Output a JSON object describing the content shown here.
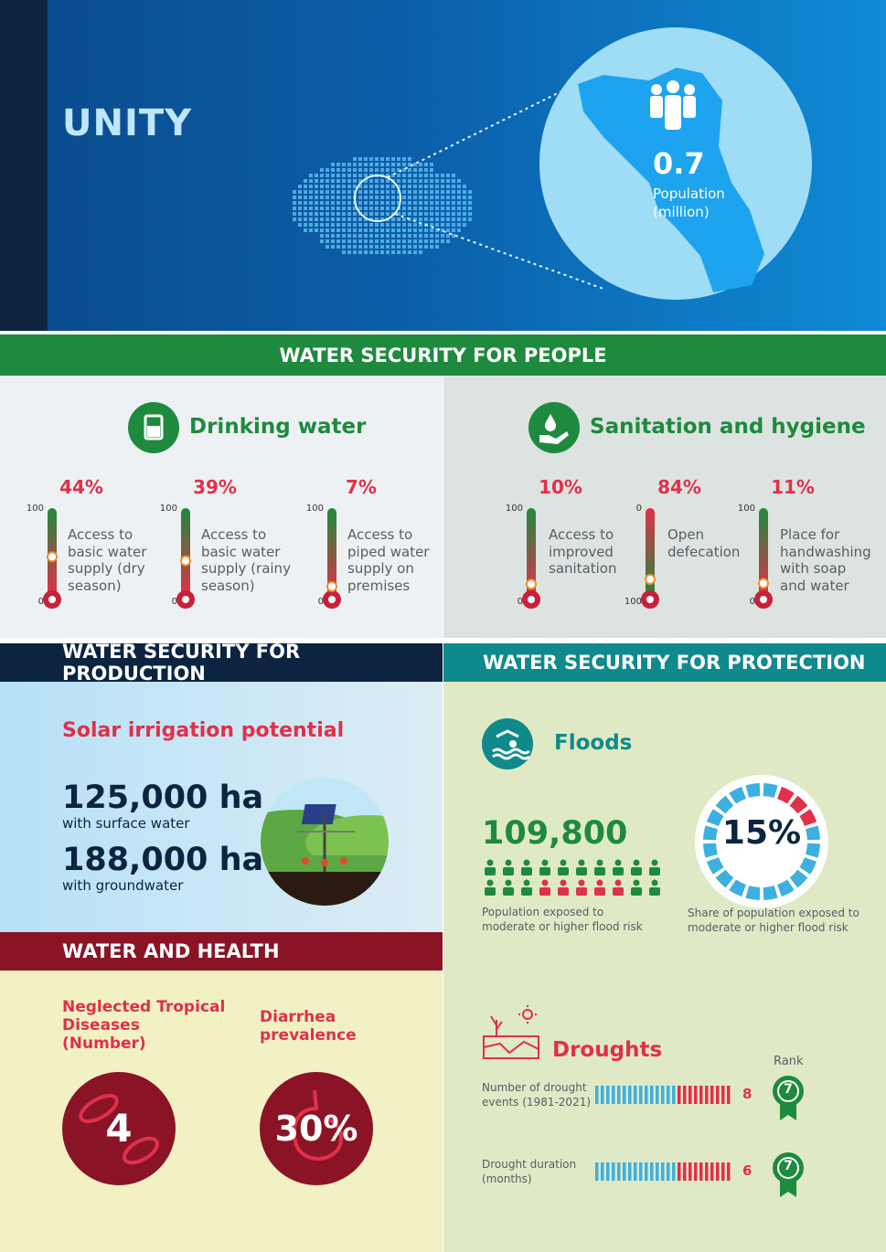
{
  "hero": {
    "title": "UNITY",
    "population_value": "0.7",
    "population_label": "Population (million)"
  },
  "people": {
    "banner": "WATER SECURITY FOR PEOPLE",
    "drinking": {
      "title": "Drinking water",
      "icon": "glass-icon",
      "indicators": [
        {
          "pct": "44%",
          "label": "Access to basic water supply (dry season)",
          "top_tick": "100",
          "bottom_tick": "0",
          "level": 0.44
        },
        {
          "pct": "39%",
          "label": "Access to basic water supply (rainy season)",
          "top_tick": "100",
          "bottom_tick": "0",
          "level": 0.39
        },
        {
          "pct": "7%",
          "label": "Access to piped water supply on premises",
          "top_tick": "100",
          "bottom_tick": "0",
          "level": 0.07
        }
      ]
    },
    "sanitation": {
      "title": "Sanitation and hygiene",
      "icon": "hand-drop-icon",
      "indicators": [
        {
          "pct": "10%",
          "label": "Access to improved sanitation",
          "top_tick": "100",
          "bottom_tick": "0",
          "level": 0.1
        },
        {
          "pct": "84%",
          "label": "Open defecation",
          "top_tick": "0",
          "bottom_tick": "100",
          "level": 0.84
        },
        {
          "pct": "11%",
          "label": "Place for handwashing with soap and water",
          "top_tick": "100",
          "bottom_tick": "0",
          "level": 0.11
        }
      ]
    }
  },
  "production": {
    "banner": "WATER SECURITY FOR PRODUCTION",
    "title": "Solar irrigation potential",
    "surface_value": "125,000 ha",
    "surface_label": "with surface water",
    "ground_value": "188,000 ha",
    "ground_label": "with groundwater"
  },
  "protection": {
    "banner": "WATER SECURITY FOR PROTECTION",
    "floods": {
      "title": "Floods",
      "population_value": "109,800",
      "population_caption": "Population exposed to moderate or higher flood risk",
      "share_value": "15%",
      "share_caption": "Share of population exposed to moderate or higher flood risk",
      "share_fraction": 0.15
    },
    "droughts": {
      "title": "Droughts",
      "rank_label": "Rank",
      "rows": [
        {
          "label": "Number of drought events (1981-2021)",
          "value": "8",
          "rank": "7"
        },
        {
          "label": "Drought duration (months)",
          "value": "6",
          "rank": "7"
        }
      ]
    }
  },
  "health": {
    "banner": "WATER AND HEALTH",
    "ntd_title": "Neglected Tropical Diseases (Number)",
    "ntd_value": "4",
    "diarrhea_title": "Diarrhea prevalence",
    "diarrhea_value": "30%"
  },
  "colors": {
    "navy": "#0c2440",
    "green": "#1e8a3e",
    "teal": "#0f8a8c",
    "red": "#e0304a",
    "maroon": "#8a1426",
    "light_blue": "#9fdcf6"
  }
}
